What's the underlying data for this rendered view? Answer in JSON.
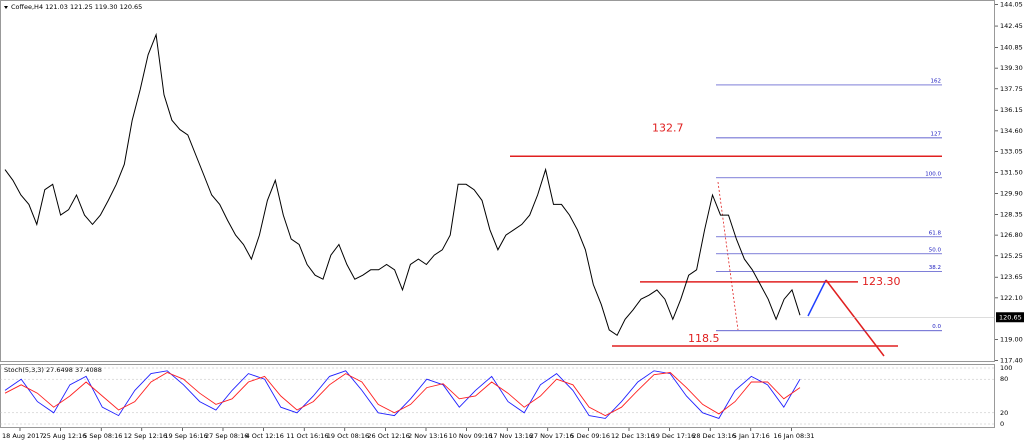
{
  "chart_data": [
    {
      "type": "line",
      "quote": "Coffee,H4  121.03 121.25 119.30 120.65",
      "color": "#000000",
      "values": [
        131.7,
        130.9,
        129.8,
        129.1,
        127.6,
        130.2,
        130.6,
        128.3,
        128.7,
        129.8,
        128.3,
        127.6,
        128.3,
        129.4,
        130.6,
        132.1,
        135.4,
        137.7,
        140.3,
        141.8,
        137.3,
        135.4,
        134.7,
        134.3,
        132.8,
        131.3,
        129.8,
        129.1,
        127.9,
        126.8,
        126.1,
        125.0,
        126.8,
        129.4,
        130.9,
        128.3,
        126.5,
        126.1,
        124.6,
        123.8,
        123.5,
        125.3,
        126.1,
        124.6,
        123.5,
        123.8,
        124.2,
        124.2,
        124.6,
        124.2,
        122.7,
        124.6,
        125.0,
        124.6,
        125.3,
        125.7,
        126.8,
        130.6,
        130.6,
        130.2,
        129.4,
        127.2,
        125.7,
        126.8,
        127.2,
        127.6,
        128.3,
        129.8,
        131.7,
        129.1,
        129.1,
        128.3,
        127.2,
        125.7,
        123.1,
        121.6,
        119.7,
        119.3,
        120.5,
        121.2,
        122.0,
        122.3,
        122.7,
        122.0,
        120.5,
        122.0,
        123.8,
        124.2,
        127.2,
        129.8,
        128.3,
        128.3,
        126.5,
        125.0,
        124.2,
        123.1,
        122.0,
        120.5,
        122.0,
        122.7,
        120.8
      ],
      "ylim": [
        117.3,
        144.4
      ],
      "yticks": [
        144.05,
        142.45,
        140.85,
        {
          "value": 139.3,
          "label": "139.30"
        },
        137.75,
        136.15,
        {
          "value": 134.6,
          "label": "134.60"
        },
        133.05,
        {
          "value": 131.5,
          "label": "131.50"
        },
        {
          "value": 129.9,
          "label": "129.90"
        },
        128.35,
        {
          "value": 126.8,
          "label": "126.80"
        },
        125.25,
        123.65,
        {
          "value": 122.1,
          "label": "122.10"
        },
        {
          "value": 119.0,
          "label": "119.00"
        },
        {
          "value": 117.4,
          "label": "117.40"
        }
      ],
      "current_price": 120.65,
      "annotations": [
        {
          "value": 132.7,
          "label": "132.7"
        },
        {
          "value": 123.3,
          "label": "123.30"
        },
        {
          "value": 118.5,
          "label": "118.5"
        }
      ],
      "fib_levels": [
        {
          "value": 138.04,
          "label": "162"
        },
        {
          "value": 134.08,
          "label": "127"
        },
        {
          "value": 131.09,
          "label": "100.0"
        },
        {
          "value": 126.67,
          "label": "61.8"
        },
        {
          "value": 125.4,
          "label": "50.0"
        },
        {
          "value": 124.06,
          "label": "38.2"
        },
        {
          "value": 119.64,
          "label": "0.0"
        }
      ],
      "time_labels": [
        "18 Aug 2017",
        "25 Aug 12:16",
        "5 Sep 08:16",
        "12 Sep 12:16",
        "19 Sep 16:16",
        "27 Sep 08:16",
        "4 Oct 12:16",
        "11 Oct 16:16",
        "19 Oct 08:16",
        "26 Oct 12:16",
        "2 Nov 13:16",
        "10 Nov 09:16",
        "17 Nov 13:16",
        "27 Nov 17:16",
        "5 Dec 09:16",
        "12 Dec 13:16",
        "19 Dec 17:16",
        "28 Dec 13:16",
        "5 Jan 17:16",
        "16 Jan 08:31"
      ]
    },
    {
      "type": "stochastic",
      "label": "Stoch(5,3,3) 27.6498 37.4088",
      "ylim": [
        0,
        100
      ],
      "yticks": [
        100,
        80,
        20,
        0
      ],
      "series": [
        {
          "name": "Main",
          "color": "#2020ff",
          "values": [
            60,
            80,
            40,
            20,
            70,
            85,
            30,
            15,
            60,
            90,
            95,
            70,
            40,
            25,
            60,
            90,
            80,
            30,
            20,
            50,
            85,
            95,
            60,
            20,
            15,
            45,
            80,
            70,
            30,
            60,
            85,
            40,
            20,
            70,
            90,
            60,
            15,
            10,
            40,
            75,
            95,
            90,
            50,
            20,
            10,
            60,
            85,
            70,
            30,
            80
          ]
        },
        {
          "name": "Signal",
          "color": "#ff2020",
          "values": [
            55,
            70,
            55,
            30,
            50,
            75,
            50,
            25,
            40,
            75,
            92,
            80,
            55,
            35,
            45,
            75,
            85,
            50,
            25,
            40,
            70,
            90,
            75,
            35,
            20,
            35,
            65,
            72,
            45,
            50,
            75,
            55,
            30,
            50,
            80,
            70,
            30,
            15,
            30,
            60,
            88,
            92,
            65,
            35,
            18,
            40,
            75,
            75,
            45,
            65
          ]
        }
      ]
    }
  ]
}
